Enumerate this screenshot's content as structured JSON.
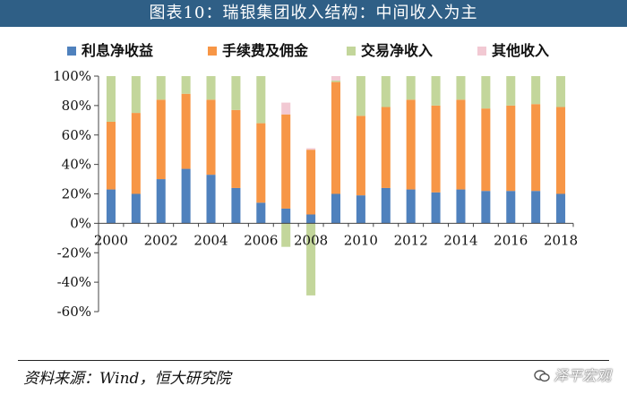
{
  "header": {
    "title": "图表10：瑞银集团收入结构：中间收入为主"
  },
  "footer": {
    "source": "资料来源：Wind，恒大研究院",
    "watermark": "泽平宏观"
  },
  "chart_data": {
    "type": "bar",
    "stacked": true,
    "title": "",
    "xlabel": "",
    "ylabel": "",
    "ylim": [
      -60,
      100
    ],
    "yticks": [
      100,
      80,
      60,
      40,
      20,
      0,
      -20,
      -40,
      -60
    ],
    "ytick_labels": [
      "100%",
      "80%",
      "60%",
      "40%",
      "20%",
      "0%",
      "-20%",
      "-40%",
      "-60%"
    ],
    "grid": false,
    "legend_position": "top",
    "categories": [
      "2000",
      "2001",
      "2002",
      "2003",
      "2004",
      "2005",
      "2006",
      "2007",
      "2008",
      "2009",
      "2010",
      "2011",
      "2012",
      "2013",
      "2014",
      "2015",
      "2016",
      "2017",
      "2018"
    ],
    "xtick_labels": [
      "2000",
      "2002",
      "2004",
      "2006",
      "2008",
      "2010",
      "2012",
      "2014",
      "2016",
      "2018"
    ],
    "series": [
      {
        "name": "利息净收益",
        "color": "#4f81bd",
        "values": [
          23,
          20,
          30,
          37,
          33,
          24,
          14,
          10,
          6,
          20,
          19,
          24,
          23,
          21,
          23,
          22,
          22,
          22,
          20
        ]
      },
      {
        "name": "手续费及佣金",
        "color": "#f79646",
        "values": [
          46,
          55,
          54,
          51,
          51,
          53,
          54,
          64,
          44,
          76,
          54,
          55,
          61,
          59,
          61,
          56,
          58,
          59,
          59
        ]
      },
      {
        "name": "交易净收入",
        "color": "#c3d69b",
        "values": [
          31,
          25,
          16,
          12,
          16,
          23,
          32,
          -16,
          -49,
          1,
          27,
          21,
          16,
          20,
          16,
          22,
          20,
          19,
          21
        ]
      },
      {
        "name": "其他收入",
        "color": "#f2c9d3",
        "values": [
          0,
          0,
          0,
          0,
          0,
          0,
          0,
          8,
          1,
          3,
          0,
          0,
          0,
          0,
          0,
          0,
          0,
          0,
          0
        ]
      }
    ]
  }
}
